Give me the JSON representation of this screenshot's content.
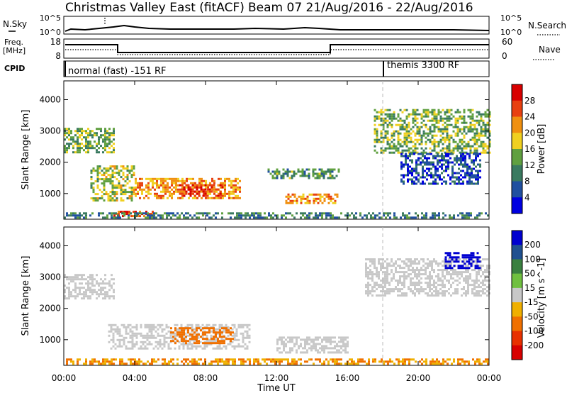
{
  "title": "Christmas Valley East (fitACF)",
  "beam_info": "Beam 07  21/Aug/2016 - 22/Aug/2016",
  "top_panels": {
    "nsky_label": "N.Sky",
    "nsky_ticks": [
      "10^5",
      "10^0"
    ],
    "nsearch_label": "N.Search",
    "nsearch_ticks": [
      "10^5",
      "10^0"
    ],
    "freq_label_1": "Freq.",
    "freq_label_2": "[MHz]",
    "freq_ticks": [
      "18",
      "8"
    ],
    "nave_label": "Nave",
    "nave_ticks": [
      "60",
      "0"
    ],
    "cpid_label": "CPID",
    "cpid_1": "normal (fast) -151 RF",
    "cpid_2": "themis 3300 RF"
  },
  "chart_data": [
    {
      "type": "heatmap",
      "name": "power-panel",
      "ylabel": "Slant Range [km]",
      "yticks": [
        1000,
        2000,
        3000,
        4000
      ],
      "ylim": [
        180,
        4600
      ],
      "xlim": [
        0,
        24
      ],
      "colorbar_label": "Power [dB]",
      "colorbar_ticks": [
        "4",
        "8",
        "12",
        "16",
        "20",
        "24",
        "28"
      ],
      "colorbar_colors": [
        "#0000e0",
        "#2050a0",
        "#3a7a60",
        "#60a040",
        "#f0d020",
        "#f09010",
        "#e84010",
        "#d80000"
      ],
      "regions": [
        {
          "t": [
            0,
            2.8
          ],
          "r": [
            2300,
            3100
          ],
          "level": 14
        },
        {
          "t": [
            1.5,
            4
          ],
          "r": [
            800,
            1900
          ],
          "level": 16
        },
        {
          "t": [
            4,
            10
          ],
          "r": [
            850,
            1500
          ],
          "level": 22
        },
        {
          "t": [
            6.5,
            9
          ],
          "r": [
            950,
            1300
          ],
          "level": 28
        },
        {
          "t": [
            2.8,
            5
          ],
          "r": [
            250,
            450
          ],
          "level": 26
        },
        {
          "t": [
            12.5,
            15.5
          ],
          "r": [
            700,
            1000
          ],
          "level": 22
        },
        {
          "t": [
            11.5,
            15.5
          ],
          "r": [
            1500,
            1800
          ],
          "level": 12
        },
        {
          "t": [
            17.5,
            24
          ],
          "r": [
            2300,
            3700
          ],
          "level": 14
        },
        {
          "t": [
            19,
            23.5
          ],
          "r": [
            1300,
            2300
          ],
          "level": 6
        },
        {
          "t": [
            0,
            24
          ],
          "r": [
            200,
            400
          ],
          "level": 10
        }
      ]
    },
    {
      "type": "heatmap",
      "name": "velocity-panel",
      "ylabel": "Slant Range [km]",
      "yticks": [
        1000,
        2000,
        3000,
        4000
      ],
      "ylim": [
        180,
        4600
      ],
      "xlim": [
        0,
        24
      ],
      "xlabel": "Time UT",
      "xticks": [
        "00:00",
        "04:00",
        "08:00",
        "12:00",
        "16:00",
        "20:00",
        "00:00"
      ],
      "colorbar_label": "Velocity [m s^-1]",
      "colorbar_ticks": [
        "200",
        "100",
        "50",
        "15",
        "-15",
        "-50",
        "-100",
        "-200"
      ],
      "colorbar_colors": [
        "#0000d0",
        "#205090",
        "#3a8040",
        "#70c040",
        "#c8c8c8",
        "#f0b000",
        "#f07000",
        "#e83000",
        "#d80000"
      ],
      "regions": [
        {
          "t": [
            0,
            2.8
          ],
          "r": [
            2300,
            3100
          ],
          "level": 0
        },
        {
          "t": [
            2.5,
            10.5
          ],
          "r": [
            700,
            1500
          ],
          "level": 0
        },
        {
          "t": [
            6,
            9.5
          ],
          "r": [
            900,
            1400
          ],
          "level": -40
        },
        {
          "t": [
            12,
            16
          ],
          "r": [
            600,
            1100
          ],
          "level": 0
        },
        {
          "t": [
            17,
            24
          ],
          "r": [
            2400,
            3600
          ],
          "level": 0
        },
        {
          "t": [
            21.5,
            23.5
          ],
          "r": [
            3300,
            3800
          ],
          "level": 180
        },
        {
          "t": [
            0,
            24
          ],
          "r": [
            200,
            400
          ],
          "level": -30
        }
      ]
    }
  ]
}
